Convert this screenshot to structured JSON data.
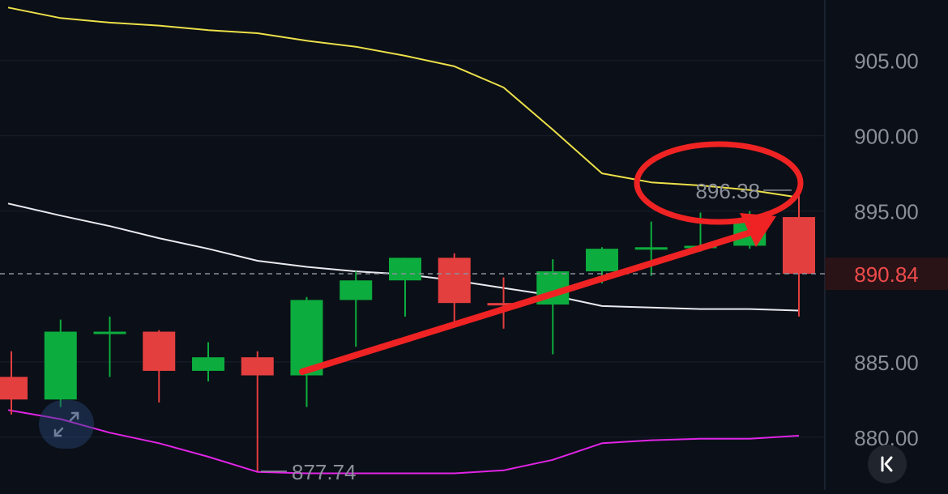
{
  "chart_data": {
    "type": "candlestick",
    "price_axis": {
      "ticks": [
        "905.00",
        "900.00",
        "895.00",
        "885.00",
        "880.00"
      ],
      "range": [
        876.5,
        909.0
      ]
    },
    "current_price": {
      "label": "890.84",
      "value": 890.84
    },
    "annotations": {
      "high_label": "896.38",
      "low_label": "877.74"
    },
    "candles": [
      {
        "o": 884.0,
        "h": 885.7,
        "l": 881.5,
        "c": 882.5
      },
      {
        "o": 882.5,
        "h": 887.8,
        "l": 882.0,
        "c": 887.0
      },
      {
        "o": 887.0,
        "h": 888.0,
        "l": 884.0,
        "c": 887.0
      },
      {
        "o": 887.0,
        "h": 887.1,
        "l": 882.3,
        "c": 884.4
      },
      {
        "o": 884.4,
        "h": 886.3,
        "l": 883.7,
        "c": 885.3
      },
      {
        "o": 885.3,
        "h": 885.7,
        "l": 877.74,
        "c": 884.1
      },
      {
        "o": 884.1,
        "h": 889.3,
        "l": 882.0,
        "c": 889.1
      },
      {
        "o": 889.1,
        "h": 891.0,
        "l": 886.0,
        "c": 890.4
      },
      {
        "o": 890.4,
        "h": 891.9,
        "l": 888.0,
        "c": 891.9
      },
      {
        "o": 891.9,
        "h": 892.2,
        "l": 887.3,
        "c": 888.9
      },
      {
        "o": 888.9,
        "h": 890.6,
        "l": 887.2,
        "c": 888.8
      },
      {
        "o": 888.8,
        "h": 891.8,
        "l": 885.5,
        "c": 891.0
      },
      {
        "o": 891.0,
        "h": 892.6,
        "l": 890.2,
        "c": 892.5
      },
      {
        "o": 892.5,
        "h": 894.3,
        "l": 890.7,
        "c": 892.6
      },
      {
        "o": 892.6,
        "h": 894.9,
        "l": 892.3,
        "c": 892.7
      },
      {
        "o": 892.7,
        "h": 895.0,
        "l": 892.5,
        "c": 894.4
      },
      {
        "o": 894.6,
        "h": 896.38,
        "l": 888.0,
        "c": 890.84
      }
    ],
    "bands": {
      "upper": {
        "color": "#ece04a",
        "values": [
          908.5,
          907.8,
          907.5,
          907.3,
          907.0,
          906.8,
          906.3,
          905.9,
          905.3,
          904.6,
          903.2,
          900.4,
          897.5,
          896.9,
          896.7,
          896.4,
          895.9
        ]
      },
      "middle": {
        "color": "#e9eaf0",
        "values": [
          895.5,
          894.7,
          894.0,
          893.2,
          892.5,
          891.7,
          891.3,
          891.0,
          890.8,
          890.4,
          889.9,
          889.4,
          888.7,
          888.6,
          888.5,
          888.5,
          888.4
        ]
      },
      "lower": {
        "color": "#e024e6",
        "values": [
          881.8,
          881.2,
          880.3,
          879.6,
          878.7,
          877.7,
          877.6,
          877.6,
          877.6,
          877.6,
          877.8,
          878.5,
          879.6,
          879.8,
          879.9,
          879.9,
          880.1
        ]
      }
    },
    "colors": {
      "up": "#0cad3e",
      "down": "#e43f3f",
      "arrow": "#ef2323",
      "circle": "#ef2323",
      "axis_text": "#8a8f99",
      "current_price_text": "#ef4b4b"
    }
  },
  "icons": {
    "expand": "expand-arrows-icon",
    "collapse": "collapse-chevron-icon"
  }
}
